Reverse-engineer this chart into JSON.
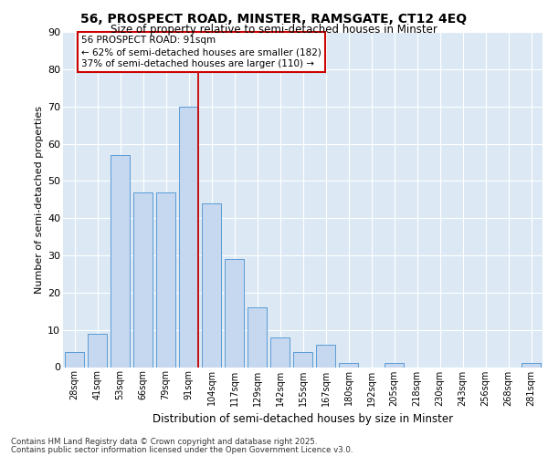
{
  "title1": "56, PROSPECT ROAD, MINSTER, RAMSGATE, CT12 4EQ",
  "title2": "Size of property relative to semi-detached houses in Minster",
  "xlabel": "Distribution of semi-detached houses by size in Minster",
  "ylabel": "Number of semi-detached properties",
  "categories": [
    "28sqm",
    "41sqm",
    "53sqm",
    "66sqm",
    "79sqm",
    "91sqm",
    "104sqm",
    "117sqm",
    "129sqm",
    "142sqm",
    "155sqm",
    "167sqm",
    "180sqm",
    "192sqm",
    "205sqm",
    "218sqm",
    "230sqm",
    "243sqm",
    "256sqm",
    "268sqm",
    "281sqm"
  ],
  "values": [
    4,
    9,
    57,
    47,
    47,
    70,
    44,
    29,
    16,
    8,
    4,
    6,
    1,
    0,
    1,
    0,
    0,
    0,
    0,
    0,
    1
  ],
  "bar_color": "#c5d8f0",
  "bar_edge_color": "#5b9bd5",
  "bg_color": "#dce9f5",
  "grid_color": "#ffffff",
  "vline_color": "#cc0000",
  "vline_x_index": 5,
  "annotation_title": "56 PROSPECT ROAD: 91sqm",
  "annotation_line1": "← 62% of semi-detached houses are smaller (182)",
  "annotation_line2": "37% of semi-detached houses are larger (110) →",
  "annotation_box_color": "#ffffff",
  "annotation_box_edge": "#cc0000",
  "footer1": "Contains HM Land Registry data © Crown copyright and database right 2025.",
  "footer2": "Contains public sector information licensed under the Open Government Licence v3.0.",
  "ylim": [
    0,
    90
  ],
  "yticks": [
    0,
    10,
    20,
    30,
    40,
    50,
    60,
    70,
    80,
    90
  ],
  "bar_width": 0.85
}
